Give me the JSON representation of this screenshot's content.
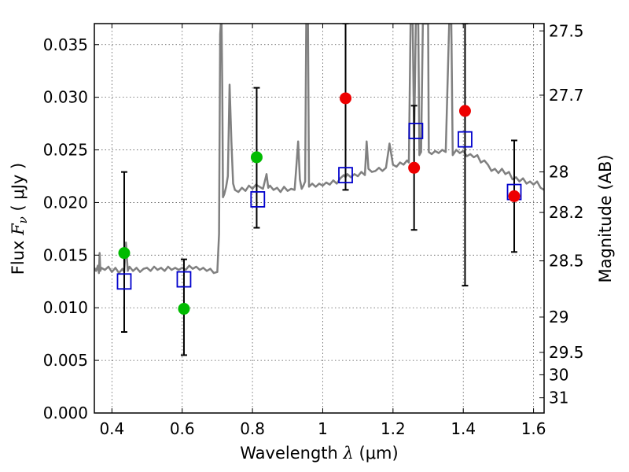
{
  "chart_data": {
    "type": "scatter",
    "title": "",
    "xlabel": "Wavelength  λ (μm)",
    "ylabel": "Flux  F_ν  ( μJy )",
    "ylabel_parts": {
      "prefix": "Flux  ",
      "symbol": "F",
      "subscript": "ν",
      "unit": "  ( μJy )"
    },
    "xlabel_parts": {
      "prefix": "Wavelength  ",
      "symbol": "λ",
      "unit": " (μm)"
    },
    "y2label": "Magnitude (AB)",
    "xlim": [
      0.35,
      1.63
    ],
    "ylim": [
      0.0,
      0.037
    ],
    "grid": true,
    "x_ticks": [
      {
        "value": 0.4,
        "label": "0.4"
      },
      {
        "value": 0.6,
        "label": "0.6"
      },
      {
        "value": 0.8,
        "label": "0.8"
      },
      {
        "value": 1.0,
        "label": "1"
      },
      {
        "value": 1.2,
        "label": "1.2"
      },
      {
        "value": 1.4,
        "label": "1.4"
      },
      {
        "value": 1.6,
        "label": "1.6"
      }
    ],
    "y_ticks": [
      {
        "value": 0.0,
        "label": "0.000"
      },
      {
        "value": 0.005,
        "label": "0.005"
      },
      {
        "value": 0.01,
        "label": "0.010"
      },
      {
        "value": 0.015,
        "label": "0.015"
      },
      {
        "value": 0.02,
        "label": "0.020"
      },
      {
        "value": 0.025,
        "label": "0.025"
      },
      {
        "value": 0.03,
        "label": "0.030"
      },
      {
        "value": 0.035,
        "label": "0.035"
      }
    ],
    "y2_ticks": [
      {
        "mag": 27.5,
        "label": "27.5"
      },
      {
        "mag": 27.7,
        "label": "27.7"
      },
      {
        "mag": 28.0,
        "label": "28"
      },
      {
        "mag": 28.2,
        "label": "28.2"
      },
      {
        "mag": 28.5,
        "label": "28.5"
      },
      {
        "mag": 29.0,
        "label": "29"
      },
      {
        "mag": 29.5,
        "label": "29.5"
      },
      {
        "mag": 30.0,
        "label": "30"
      },
      {
        "mag": 31.0,
        "label": "31"
      }
    ],
    "colors": {
      "spectrum": "#808080",
      "model_square": "#0000cc",
      "green": "#00bb00",
      "red": "#ee0000",
      "errorbar": "#000000",
      "grid": "#555555"
    },
    "series": [
      {
        "kind": "spectrum",
        "points": [
          [
            0.35,
            0.0138
          ],
          [
            0.355,
            0.0135
          ],
          [
            0.36,
            0.014
          ],
          [
            0.363,
            0.0133
          ],
          [
            0.365,
            0.0152
          ],
          [
            0.367,
            0.0135
          ],
          [
            0.37,
            0.0138
          ],
          [
            0.38,
            0.0136
          ],
          [
            0.39,
            0.0139
          ],
          [
            0.4,
            0.0134
          ],
          [
            0.41,
            0.0138
          ],
          [
            0.42,
            0.0133
          ],
          [
            0.43,
            0.0137
          ],
          [
            0.435,
            0.0134
          ],
          [
            0.44,
            0.0162
          ],
          [
            0.445,
            0.0135
          ],
          [
            0.45,
            0.0139
          ],
          [
            0.46,
            0.0135
          ],
          [
            0.47,
            0.0138
          ],
          [
            0.48,
            0.0134
          ],
          [
            0.49,
            0.0137
          ],
          [
            0.5,
            0.0138
          ],
          [
            0.51,
            0.0135
          ],
          [
            0.52,
            0.0139
          ],
          [
            0.53,
            0.0136
          ],
          [
            0.54,
            0.0138
          ],
          [
            0.55,
            0.0135
          ],
          [
            0.56,
            0.0139
          ],
          [
            0.57,
            0.0136
          ],
          [
            0.58,
            0.0138
          ],
          [
            0.59,
            0.0136
          ],
          [
            0.6,
            0.0138
          ],
          [
            0.61,
            0.0136
          ],
          [
            0.62,
            0.014
          ],
          [
            0.63,
            0.0137
          ],
          [
            0.64,
            0.0139
          ],
          [
            0.65,
            0.0136
          ],
          [
            0.66,
            0.0138
          ],
          [
            0.67,
            0.0135
          ],
          [
            0.68,
            0.0137
          ],
          [
            0.69,
            0.0133
          ],
          [
            0.7,
            0.0134
          ],
          [
            0.705,
            0.017
          ],
          [
            0.708,
            0.036
          ],
          [
            0.71,
            0.037
          ],
          [
            0.712,
            0.037
          ],
          [
            0.714,
            0.031
          ],
          [
            0.716,
            0.0205
          ],
          [
            0.72,
            0.0208
          ],
          [
            0.725,
            0.0215
          ],
          [
            0.73,
            0.0225
          ],
          [
            0.735,
            0.0312
          ],
          [
            0.74,
            0.0258
          ],
          [
            0.745,
            0.0218
          ],
          [
            0.75,
            0.0212
          ],
          [
            0.76,
            0.021
          ],
          [
            0.77,
            0.0214
          ],
          [
            0.78,
            0.0211
          ],
          [
            0.79,
            0.0216
          ],
          [
            0.8,
            0.0213
          ],
          [
            0.81,
            0.0217
          ],
          [
            0.82,
            0.0215
          ],
          [
            0.83,
            0.0213
          ],
          [
            0.84,
            0.0227
          ],
          [
            0.845,
            0.0214
          ],
          [
            0.85,
            0.0216
          ],
          [
            0.86,
            0.0212
          ],
          [
            0.87,
            0.0214
          ],
          [
            0.88,
            0.021
          ],
          [
            0.89,
            0.0215
          ],
          [
            0.9,
            0.0211
          ],
          [
            0.91,
            0.0213
          ],
          [
            0.92,
            0.0212
          ],
          [
            0.925,
            0.0235
          ],
          [
            0.93,
            0.0258
          ],
          [
            0.935,
            0.0222
          ],
          [
            0.94,
            0.0213
          ],
          [
            0.945,
            0.0216
          ],
          [
            0.95,
            0.022
          ],
          [
            0.953,
            0.037
          ],
          [
            0.958,
            0.037
          ],
          [
            0.961,
            0.0215
          ],
          [
            0.97,
            0.0218
          ],
          [
            0.98,
            0.0215
          ],
          [
            0.99,
            0.0218
          ],
          [
            1.0,
            0.0216
          ],
          [
            1.01,
            0.0219
          ],
          [
            1.02,
            0.0217
          ],
          [
            1.03,
            0.0221
          ],
          [
            1.04,
            0.0218
          ],
          [
            1.05,
            0.0223
          ],
          [
            1.06,
            0.0226
          ],
          [
            1.065,
            0.0224
          ],
          [
            1.07,
            0.0227
          ],
          [
            1.08,
            0.0224
          ],
          [
            1.09,
            0.0227
          ],
          [
            1.1,
            0.0225
          ],
          [
            1.11,
            0.0229
          ],
          [
            1.12,
            0.0226
          ],
          [
            1.125,
            0.0258
          ],
          [
            1.13,
            0.0232
          ],
          [
            1.14,
            0.0229
          ],
          [
            1.15,
            0.023
          ],
          [
            1.16,
            0.0233
          ],
          [
            1.17,
            0.023
          ],
          [
            1.18,
            0.0233
          ],
          [
            1.19,
            0.0256
          ],
          [
            1.2,
            0.0236
          ],
          [
            1.21,
            0.0234
          ],
          [
            1.22,
            0.0238
          ],
          [
            1.23,
            0.0236
          ],
          [
            1.24,
            0.024
          ],
          [
            1.245,
            0.0238
          ],
          [
            1.25,
            0.037
          ],
          [
            1.256,
            0.037
          ],
          [
            1.26,
            0.026
          ],
          [
            1.265,
            0.037
          ],
          [
            1.272,
            0.037
          ],
          [
            1.275,
            0.0245
          ],
          [
            1.28,
            0.0248
          ],
          [
            1.285,
            0.037
          ],
          [
            1.3,
            0.037
          ],
          [
            1.302,
            0.0248
          ],
          [
            1.31,
            0.0246
          ],
          [
            1.32,
            0.0249
          ],
          [
            1.33,
            0.0247
          ],
          [
            1.34,
            0.025
          ],
          [
            1.35,
            0.0248
          ],
          [
            1.36,
            0.037
          ],
          [
            1.366,
            0.037
          ],
          [
            1.37,
            0.0245
          ],
          [
            1.38,
            0.025
          ],
          [
            1.39,
            0.0247
          ],
          [
            1.4,
            0.0249
          ],
          [
            1.41,
            0.0244
          ],
          [
            1.42,
            0.0246
          ],
          [
            1.43,
            0.0243
          ],
          [
            1.44,
            0.0245
          ],
          [
            1.45,
            0.0238
          ],
          [
            1.46,
            0.024
          ],
          [
            1.47,
            0.0236
          ],
          [
            1.48,
            0.023
          ],
          [
            1.49,
            0.0232
          ],
          [
            1.5,
            0.0228
          ],
          [
            1.51,
            0.0232
          ],
          [
            1.52,
            0.0227
          ],
          [
            1.53,
            0.0229
          ],
          [
            1.54,
            0.0222
          ],
          [
            1.55,
            0.0224
          ],
          [
            1.56,
            0.022
          ],
          [
            1.57,
            0.0223
          ],
          [
            1.58,
            0.0218
          ],
          [
            1.59,
            0.022
          ],
          [
            1.6,
            0.0217
          ],
          [
            1.61,
            0.022
          ],
          [
            1.62,
            0.0214
          ],
          [
            1.63,
            0.0212
          ]
        ]
      },
      {
        "kind": "errorbars",
        "points": [
          {
            "x": 0.435,
            "low": 0.0077,
            "high": 0.0229
          },
          {
            "x": 0.605,
            "low": 0.0055,
            "high": 0.0146
          },
          {
            "x": 0.812,
            "low": 0.0176,
            "high": 0.0309
          },
          {
            "x": 1.065,
            "low": 0.0212,
            "high": 0.037
          },
          {
            "x": 1.26,
            "low": 0.0174,
            "high": 0.0292
          },
          {
            "x": 1.405,
            "low": 0.0121,
            "high": 0.037
          },
          {
            "x": 1.545,
            "low": 0.0153,
            "high": 0.0259
          }
        ]
      },
      {
        "kind": "model_squares",
        "points": [
          {
            "x": 0.435,
            "y": 0.0125
          },
          {
            "x": 0.605,
            "y": 0.0127
          },
          {
            "x": 0.815,
            "y": 0.0203
          },
          {
            "x": 1.065,
            "y": 0.0226
          },
          {
            "x": 1.265,
            "y": 0.0268
          },
          {
            "x": 1.405,
            "y": 0.026
          },
          {
            "x": 1.545,
            "y": 0.021
          }
        ]
      },
      {
        "kind": "green_points",
        "points": [
          {
            "x": 0.435,
            "y": 0.0152
          },
          {
            "x": 0.605,
            "y": 0.0099
          },
          {
            "x": 0.812,
            "y": 0.0243
          }
        ]
      },
      {
        "kind": "red_points",
        "points": [
          {
            "x": 1.065,
            "y": 0.0299
          },
          {
            "x": 1.26,
            "y": 0.0233
          },
          {
            "x": 1.405,
            "y": 0.0287
          },
          {
            "x": 1.545,
            "y": 0.0206
          }
        ]
      }
    ]
  }
}
